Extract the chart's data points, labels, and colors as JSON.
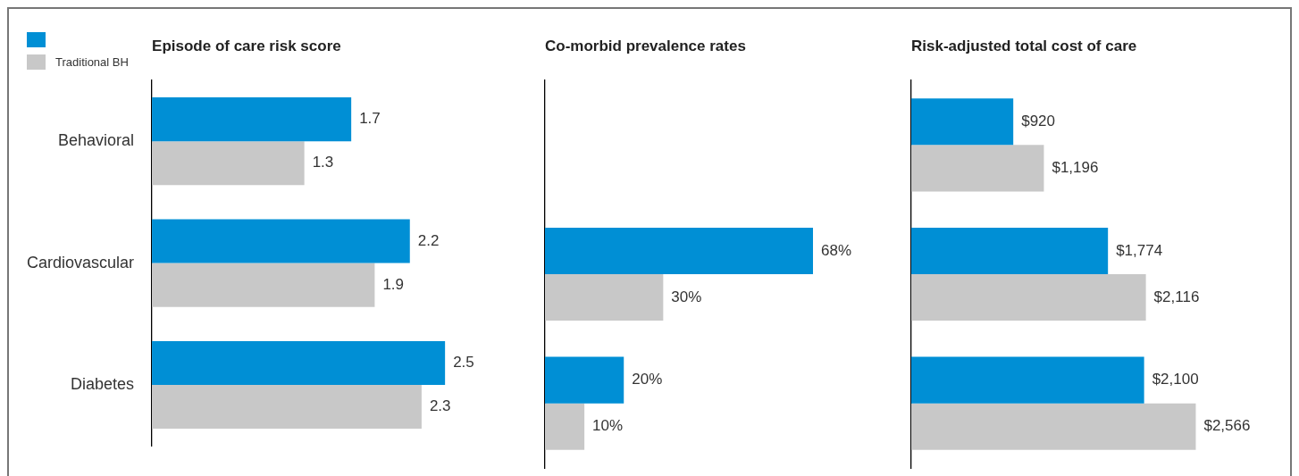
{
  "chart_data": [
    {
      "type": "bar",
      "orientation": "horizontal",
      "title": "Episode of care risk score",
      "categories": [
        "Behavioral",
        "Cardiovascular",
        "Diabetes"
      ],
      "legend": "top left",
      "tick_labels": "y",
      "data_labels": true,
      "series": [
        {
          "color": "#008fd5",
          "values": [
            1.7,
            2.2,
            2.5
          ]
        },
        {
          "name": "Traditional BH",
          "color": "#c8c8c8",
          "values": [
            1.3,
            1.9,
            2.3
          ]
        }
      ]
    },
    {
      "type": "bar",
      "orientation": "horizontal",
      "title": "Co-morbid prevalence rates",
      "categories": [
        null,
        null,
        null
      ],
      "tick_labels": false,
      "series": [
        {
          "color": "#008fd5",
          "values": [
            null,
            68,
            20
          ],
          "value_labels": [
            null,
            "68%",
            "20%"
          ]
        },
        {
          "color": "#c8c8c8",
          "values": [
            null,
            30,
            10
          ],
          "value_labels": [
            null,
            "30%",
            "10%"
          ]
        }
      ]
    },
    {
      "type": "bar",
      "orientation": "horizontal",
      "title": "Risk-adjusted total cost of care",
      "categories": [
        null,
        null,
        null
      ],
      "tick_labels": false,
      "series": [
        {
          "color": "#008fd5",
          "values": [
            920,
            1774,
            2100
          ],
          "value_labels": [
            "$920",
            "$1,774",
            "$2,100"
          ]
        },
        {
          "color": "#c8c8c8",
          "values": [
            1196,
            2116,
            2566
          ],
          "value_labels": [
            "$1,196",
            "$2,116",
            "$2,566"
          ]
        }
      ]
    }
  ]
}
